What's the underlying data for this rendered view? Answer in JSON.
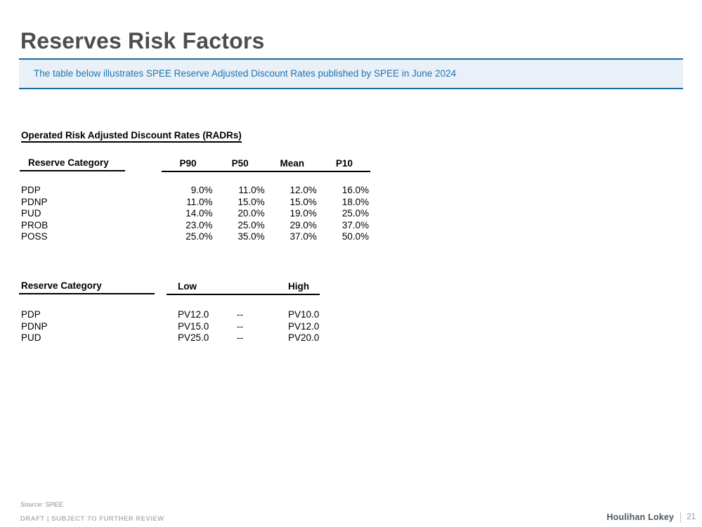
{
  "slide": {
    "title": "Reserves Risk Factors",
    "banner_text": "The table below illustrates SPEE Reserve Adjusted Discount Rates published by SPEE in June 2024"
  },
  "radr_table": {
    "heading": "Operated Risk Adjusted Discount Rates (RADRs)",
    "headers": {
      "category": "Reserve Category",
      "p90": "P90",
      "p50": "P50",
      "mean": "Mean",
      "p10": "P10"
    },
    "rows": [
      {
        "category": "PDP",
        "p90": "9.0%",
        "p50": "11.0%",
        "mean": "12.0%",
        "p10": "16.0%"
      },
      {
        "category": "PDNP",
        "p90": "11.0%",
        "p50": "15.0%",
        "mean": "15.0%",
        "p10": "18.0%"
      },
      {
        "category": "PUD",
        "p90": "14.0%",
        "p50": "20.0%",
        "mean": "19.0%",
        "p10": "25.0%"
      },
      {
        "category": "PROB",
        "p90": "23.0%",
        "p50": "25.0%",
        "mean": "29.0%",
        "p10": "37.0%"
      },
      {
        "category": "POSS",
        "p90": "25.0%",
        "p50": "35.0%",
        "mean": "37.0%",
        "p10": "50.0%"
      }
    ]
  },
  "pv_table": {
    "headers": {
      "category": "Reserve Category",
      "low": "Low",
      "high": "High"
    },
    "rows": [
      {
        "category": "PDP",
        "low": "PV12.0",
        "sep": "--",
        "high": "PV10.0"
      },
      {
        "category": "PDNP",
        "low": "PV15.0",
        "sep": "--",
        "high": "PV12.0"
      },
      {
        "category": "PUD",
        "low": "PV25.0",
        "sep": "--",
        "high": "PV20.0"
      }
    ]
  },
  "footer": {
    "source": "Source: SPEE.",
    "draft": "DRAFT | SUBJECT TO FURTHER REVIEW",
    "brand": "Houlihan Lokey",
    "page": "21"
  },
  "colors": {
    "title_gray": "#4d4d4d",
    "banner_background": "#e9f0f7",
    "banner_border_blue": "#1b6ba0",
    "banner_text_blue": "#1e75b2",
    "table_text": "#000000",
    "footer_gray": "#8c8c8c",
    "draft_gray": "#b3b3b3",
    "brand_slate": "#4a5866"
  }
}
